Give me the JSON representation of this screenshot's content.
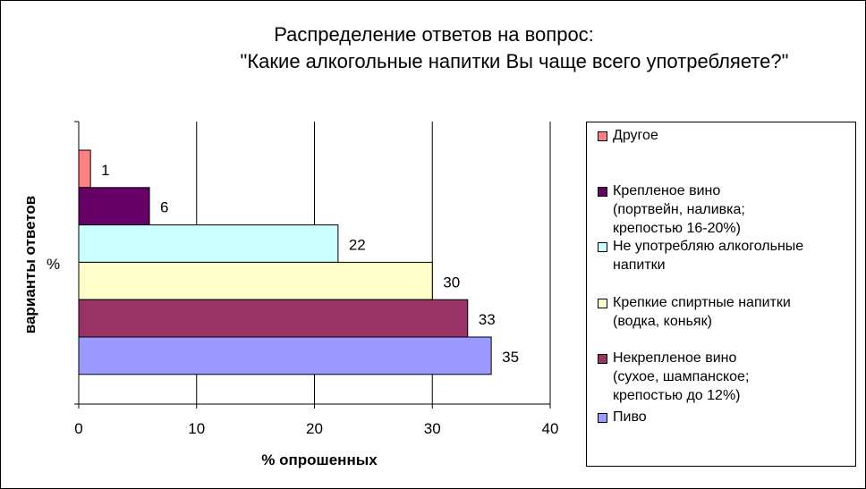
{
  "title": {
    "line1": "Распределение ответов на вопрос:",
    "line2": "\"Какие алкогольные напитки Вы чаще всего употребляете?\""
  },
  "chart_data": {
    "type": "bar",
    "orientation": "horizontal",
    "title": "Распределение ответов на вопрос: \"Какие алкогольные напитки Вы чаще всего употребляете?\"",
    "xlabel": "% опрошенных",
    "ylabel": "варианты ответов",
    "y_tick_label": "%",
    "xlim": [
      0,
      40
    ],
    "x_ticks": [
      "0",
      "10",
      "20",
      "30",
      "40"
    ],
    "grid": true,
    "legend_position": "right",
    "categories": [
      "Другое",
      "Крепленое вино (портвейн, наливка; крепостью 16-20%)",
      "Не употребляю алкогольные напитки",
      "Крепкие спиртные напитки (водка, коньяк)",
      "Некрепленое вино (сухое, шампанское; крепостью до 12%)",
      "Пиво"
    ],
    "values": [
      1,
      6,
      22,
      30,
      33,
      35
    ],
    "value_labels": [
      "1",
      "6",
      "22",
      "30",
      "33",
      "35"
    ],
    "colors": [
      "#ff8080",
      "#660066",
      "#ccffff",
      "#ffffcc",
      "#993366",
      "#9999ff"
    ]
  },
  "legend": {
    "items": [
      {
        "label": "Другое",
        "color": "#ff8080"
      },
      {
        "label": "Крепленое вино\n(портвейн, наливка;\nкрепостью 16-20%)",
        "color": "#660066"
      },
      {
        "label": "Не употребляю алкогольные\nнапитки",
        "color": "#ccffff"
      },
      {
        "label": "Крепкие спиртные напитки\n(водка, коньяк)",
        "color": "#ffffcc"
      },
      {
        "label": "Некрепленое вино\n(сухое, шампанское;\nкрепостью до 12%)",
        "color": "#993366"
      },
      {
        "label": "Пиво",
        "color": "#9999ff"
      }
    ]
  }
}
